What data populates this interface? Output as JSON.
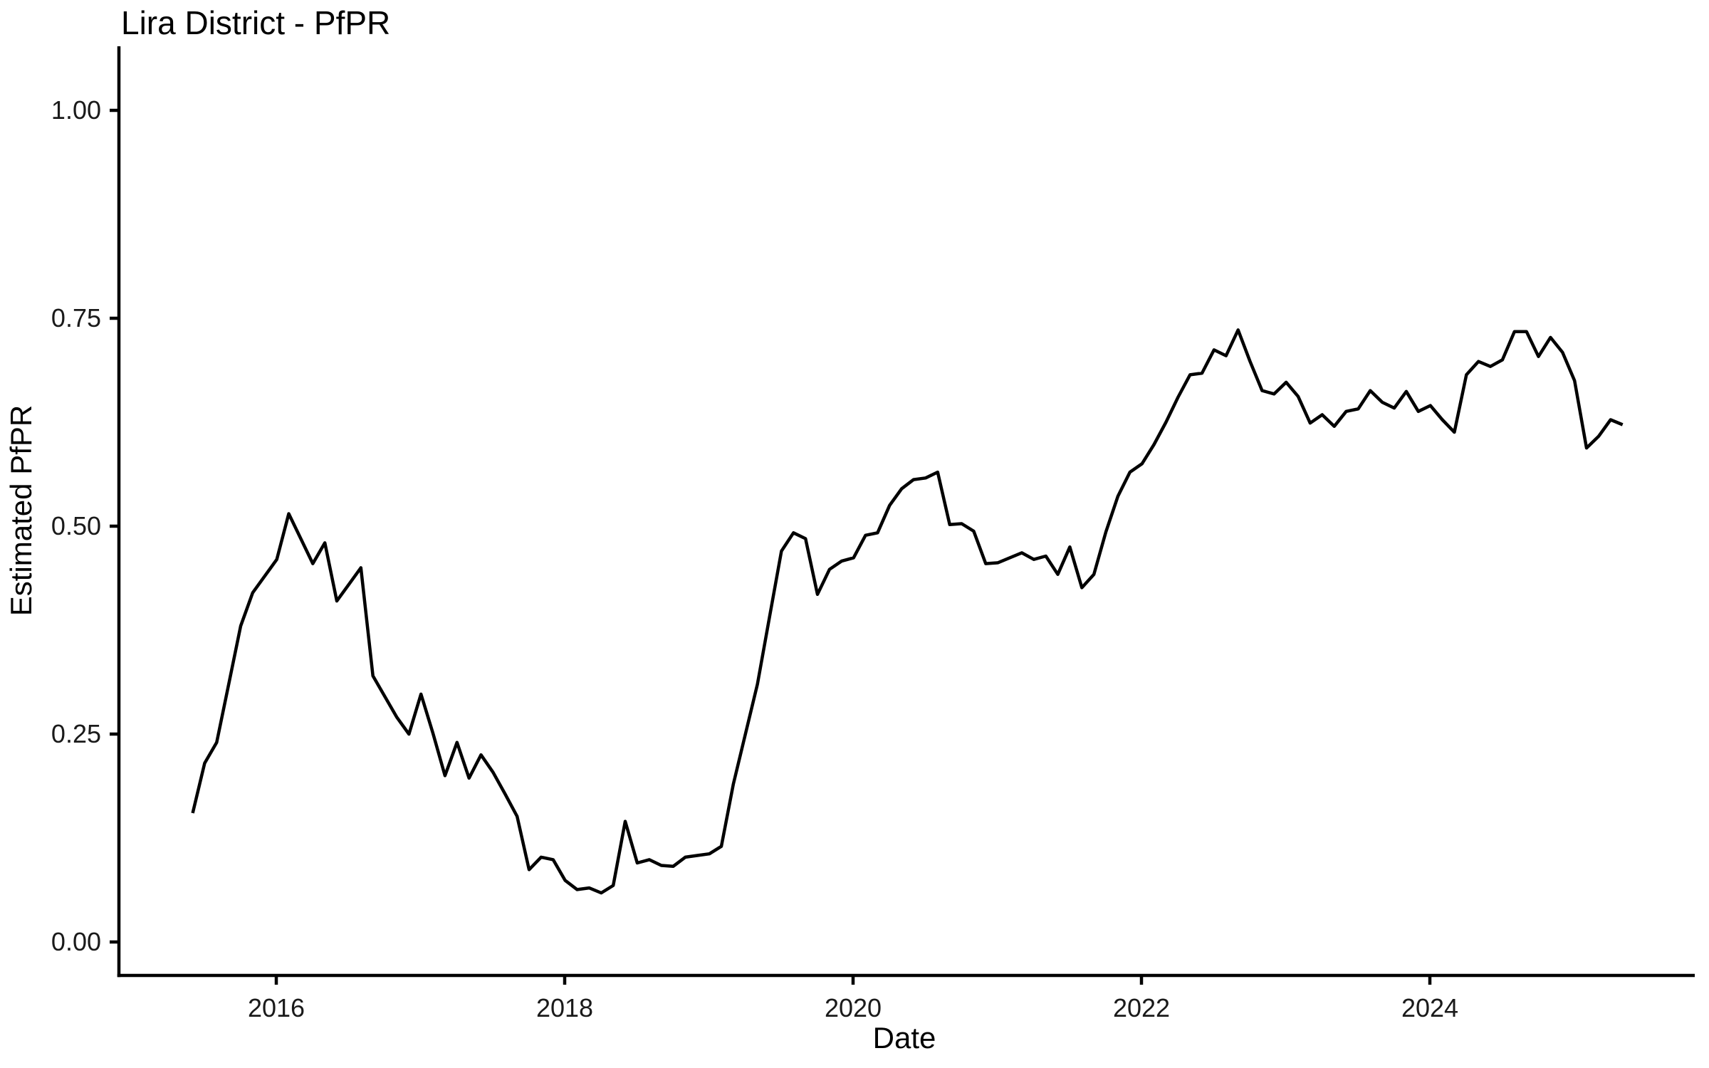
{
  "chart_data": {
    "type": "line",
    "title": "Lira District - PfPR",
    "xlabel": "Date",
    "ylabel": "Estimated PfPR",
    "grid": false,
    "legend": false,
    "background": "#ffffff",
    "line_color": "#000000",
    "axis_color": "#000000",
    "xlim": [
      2015.25,
      2025.6
    ],
    "ylim": [
      0.0,
      1.0
    ],
    "x_ticks": {
      "values": [
        2016,
        2018,
        2020,
        2022,
        2024
      ],
      "labels": [
        "2016",
        "2018",
        "2020",
        "2022",
        "2024"
      ]
    },
    "y_ticks": {
      "values": [
        0.0,
        0.25,
        0.5,
        0.75,
        1.0
      ],
      "labels": [
        "0.00",
        "0.25",
        "0.50",
        "0.75",
        "1.00"
      ]
    },
    "date_range": {
      "start": "2015-06",
      "end": "2025-05",
      "frequency": "monthly"
    },
    "series": [
      {
        "name": "Estimated PfPR",
        "start_year": 2015.42,
        "step_years": 0.0833333,
        "values": [
          0.155,
          0.215,
          0.24,
          0.31,
          0.38,
          0.42,
          0.44,
          0.46,
          0.515,
          0.485,
          0.455,
          0.48,
          0.41,
          0.43,
          0.45,
          0.32,
          0.295,
          0.27,
          0.25,
          0.298,
          0.251,
          0.2,
          0.24,
          0.197,
          0.225,
          0.204,
          0.178,
          0.151,
          0.087,
          0.102,
          0.099,
          0.074,
          0.063,
          0.065,
          0.059,
          0.068,
          0.145,
          0.095,
          0.099,
          0.092,
          0.091,
          0.102,
          0.104,
          0.106,
          0.115,
          0.19,
          0.25,
          0.31,
          0.39,
          0.47,
          0.492,
          0.485,
          0.418,
          0.448,
          0.458,
          0.462,
          0.489,
          0.492,
          0.525,
          0.545,
          0.556,
          0.558,
          0.565,
          0.502,
          0.503,
          0.494,
          0.455,
          0.456,
          0.462,
          0.468,
          0.46,
          0.464,
          0.442,
          0.475,
          0.426,
          0.442,
          0.493,
          0.536,
          0.565,
          0.575,
          0.598,
          0.625,
          0.655,
          0.682,
          0.684,
          0.712,
          0.705,
          0.736,
          0.698,
          0.663,
          0.659,
          0.673,
          0.656,
          0.624,
          0.634,
          0.62,
          0.638,
          0.641,
          0.663,
          0.649,
          0.642,
          0.662,
          0.638,
          0.645,
          0.628,
          0.613,
          0.682,
          0.698,
          0.692,
          0.7,
          0.734,
          0.734,
          0.704,
          0.727,
          0.709,
          0.675,
          0.594,
          0.608,
          0.628,
          0.622
        ]
      }
    ]
  }
}
